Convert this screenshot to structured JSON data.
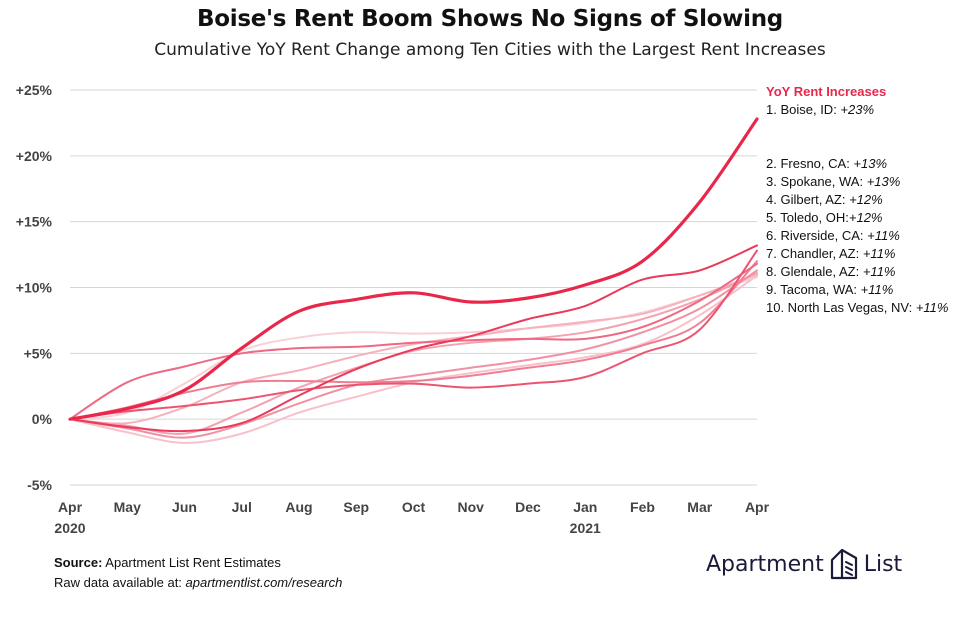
{
  "title": "Boise's Rent Boom Shows No Signs of Slowing",
  "subtitle": "Cumulative YoY Rent Change among Ten Cities with the Largest Rent Increases",
  "legend": {
    "title": "YoY Rent Increases",
    "items": [
      {
        "label": "1. Boise, ID: ",
        "value": "+23%"
      },
      {
        "label": "2. Fresno, CA: ",
        "value": "+13%"
      },
      {
        "label": "3. Spokane, WA: ",
        "value": "+13%"
      },
      {
        "label": "4. Gilbert, AZ: ",
        "value": "+12%"
      },
      {
        "label": "5. Toledo, OH:",
        "value": "+12%"
      },
      {
        "label": "6. Riverside, CA: ",
        "value": "+11%"
      },
      {
        "label": "7. Chandler, AZ: ",
        "value": "+11%"
      },
      {
        "label": "8. Glendale, AZ: ",
        "value": "+11%"
      },
      {
        "label": "9. Tacoma, WA: ",
        "value": "+11%"
      },
      {
        "label": "10. North Las Vegas, NV: ",
        "value": "+11%"
      }
    ]
  },
  "source": {
    "label": "Source:",
    "text": " Apartment List Rent Estimates",
    "raw_prefix": "Raw data available at: ",
    "raw_link": "apartmentlist.com/research"
  },
  "logo": {
    "left": "Apartment",
    "right": "List"
  },
  "chart_data": {
    "type": "line",
    "x": [
      "Apr",
      "May",
      "Jun",
      "Jul",
      "Aug",
      "Sep",
      "Oct",
      "Nov",
      "Dec",
      "Jan",
      "Feb",
      "Mar",
      "Apr"
    ],
    "x_year_labels": {
      "0": "2020",
      "9": "2021"
    },
    "ylim": [
      -5,
      25
    ],
    "yticks": [
      -5,
      0,
      5,
      10,
      15,
      20,
      25
    ],
    "ytick_labels": [
      "-5%",
      "0%",
      "+5%",
      "+10%",
      "+15%",
      "+20%",
      "+25%"
    ],
    "grid": true,
    "legend_position": "right",
    "series": [
      {
        "name": "Boise, ID",
        "color": "#e8274b",
        "values": [
          0,
          0.8,
          2.2,
          5.4,
          8.2,
          9.1,
          9.6,
          8.9,
          9.2,
          10.2,
          12.0,
          16.5,
          22.8
        ]
      },
      {
        "name": "Fresno, CA",
        "color": "#ea3a5b",
        "values": [
          0,
          -0.6,
          -0.9,
          -0.3,
          1.8,
          3.8,
          5.3,
          6.3,
          7.6,
          8.6,
          10.6,
          11.3,
          13.2
        ]
      },
      {
        "name": "Spokane, WA",
        "color": "#ec5570",
        "values": [
          0,
          0.6,
          1.0,
          1.5,
          2.2,
          2.6,
          2.7,
          2.4,
          2.7,
          3.2,
          5.0,
          6.8,
          12.8
        ]
      },
      {
        "name": "Gilbert, AZ",
        "color": "#ee6a82",
        "values": [
          0,
          2.8,
          4.0,
          5.0,
          5.4,
          5.5,
          5.8,
          6.0,
          6.1,
          6.1,
          7.0,
          9.0,
          11.8
        ]
      },
      {
        "name": "Toledo, OH",
        "color": "#f07e93",
        "values": [
          0,
          0.9,
          2.0,
          2.8,
          2.9,
          2.8,
          2.9,
          3.3,
          3.9,
          4.5,
          5.6,
          7.3,
          12.0
        ]
      },
      {
        "name": "Riverside, CA",
        "color": "#f290a3",
        "values": [
          0,
          -0.7,
          -1.4,
          -0.4,
          1.2,
          2.6,
          3.3,
          3.9,
          4.5,
          5.3,
          6.6,
          8.4,
          11.3
        ]
      },
      {
        "name": "Chandler, AZ",
        "color": "#f4a1b0",
        "values": [
          0,
          -0.5,
          -1.1,
          0.5,
          2.4,
          3.9,
          5.2,
          5.8,
          6.1,
          6.6,
          7.6,
          9.1,
          11.1
        ]
      },
      {
        "name": "Glendale, AZ",
        "color": "#f6b1bd",
        "values": [
          0,
          -0.3,
          0.9,
          2.8,
          3.7,
          4.8,
          5.7,
          6.3,
          6.9,
          7.4,
          8.0,
          9.4,
          11.0
        ]
      },
      {
        "name": "Tacoma, WA",
        "color": "#f8c0ca",
        "values": [
          0,
          -1.0,
          -1.8,
          -1.1,
          0.5,
          1.7,
          2.8,
          3.5,
          4.1,
          4.7,
          5.7,
          7.9,
          10.9
        ]
      },
      {
        "name": "North Las Vegas, NV",
        "color": "#fad0d7",
        "values": [
          0,
          0.5,
          2.7,
          5.2,
          6.2,
          6.6,
          6.5,
          6.6,
          6.9,
          7.3,
          8.1,
          9.4,
          10.8
        ]
      }
    ]
  }
}
